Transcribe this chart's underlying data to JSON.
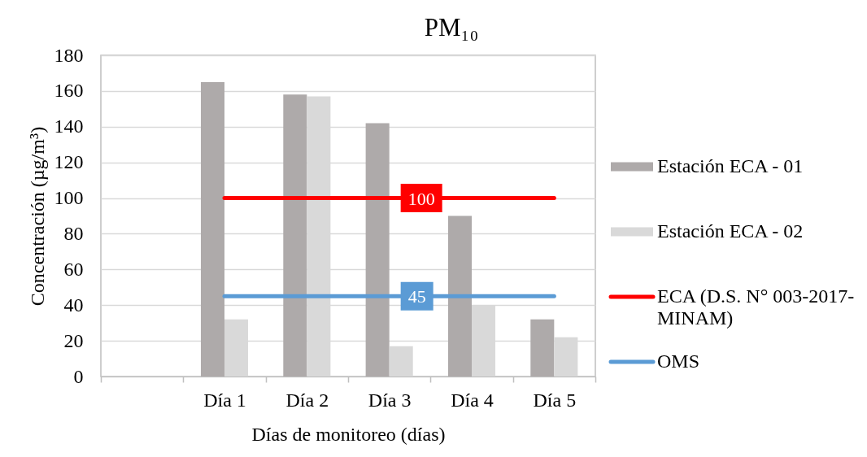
{
  "chart_data": {
    "type": "bar",
    "title": "PM₁₀",
    "xlabel": "Días de monitoreo (días)",
    "ylabel": "Concentración (µg/m³)",
    "categories": [
      null,
      "Día 1",
      "Día 2",
      "Día 3",
      "Día 4",
      "Día 5"
    ],
    "series": [
      {
        "name": "Estación ECA - 01",
        "color": "#aeaaaa",
        "values": [
          null,
          165,
          158,
          142,
          90,
          32
        ]
      },
      {
        "name": "Estación  ECA - 02",
        "color": "#d9d9d9",
        "values": [
          null,
          32,
          157,
          17,
          40,
          22
        ]
      },
      {
        "name": "ECA (D.S. N° 003-2017-MINAM)",
        "type": "line",
        "color": "#ff0000",
        "values": [
          null,
          100,
          100,
          100,
          100,
          100
        ],
        "value_labels": [
          null,
          null,
          null,
          "100",
          null,
          null
        ]
      },
      {
        "name": "OMS",
        "type": "line",
        "color": "#5b9bd5",
        "values": [
          null,
          45,
          45,
          45,
          45,
          45
        ],
        "value_labels": [
          null,
          null,
          null,
          "45",
          null,
          null
        ]
      }
    ],
    "ylim": [
      0,
      180
    ],
    "yticks": [
      0,
      20,
      40,
      60,
      80,
      100,
      120,
      140,
      160,
      180
    ],
    "grid": "y",
    "legend": "right"
  }
}
